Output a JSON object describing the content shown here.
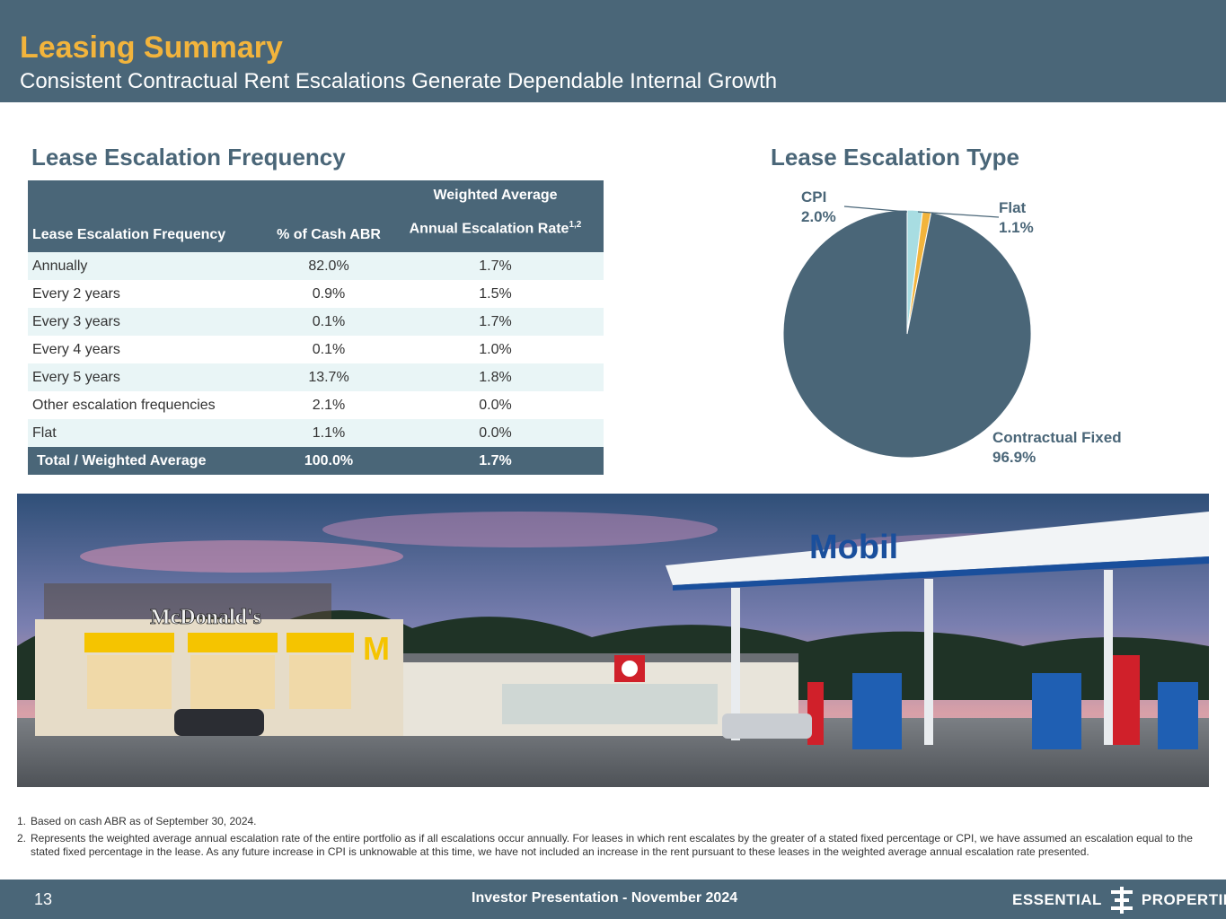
{
  "header": {
    "title": "Leasing Summary",
    "subtitle": "Consistent Contractual Rent Escalations Generate Dependable Internal Growth"
  },
  "frequency_section": {
    "title": "Lease Escalation Frequency",
    "columns": {
      "col1": "Lease Escalation Frequency",
      "col2": "% of Cash ABR",
      "col3_line1": "Weighted Average",
      "col3_line2": "Annual Escalation Rate",
      "col3_sup": "1,2"
    },
    "rows": [
      {
        "label": "Annually",
        "pct": "82.0%",
        "rate": "1.7%"
      },
      {
        "label": "Every 2 years",
        "pct": "0.9%",
        "rate": "1.5%"
      },
      {
        "label": "Every 3 years",
        "pct": "0.1%",
        "rate": "1.7%"
      },
      {
        "label": "Every 4 years",
        "pct": "0.1%",
        "rate": "1.0%"
      },
      {
        "label": "Every 5 years",
        "pct": "13.7%",
        "rate": "1.8%"
      },
      {
        "label": "Other escalation frequencies",
        "pct": "2.1%",
        "rate": "0.0%"
      },
      {
        "label": "Flat",
        "pct": "1.1%",
        "rate": "0.0%"
      }
    ],
    "total": {
      "label": "Total / Weighted Average",
      "pct": "100.0%",
      "rate": "1.7%"
    }
  },
  "type_section": {
    "title": "Lease Escalation Type",
    "labels": {
      "cpi_name": "CPI",
      "cpi_value": "2.0%",
      "flat_name": "Flat",
      "flat_value": "1.1%",
      "fixed_name": "Contractual Fixed",
      "fixed_value": "96.9%"
    }
  },
  "chart_data": {
    "type": "pie",
    "categories": [
      "CPI",
      "Flat",
      "Contractual Fixed"
    ],
    "values": [
      2.0,
      1.1,
      96.9
    ],
    "colors": [
      "#a8dde2",
      "#f2b43c",
      "#4a6678"
    ],
    "title": "Lease Escalation Type"
  },
  "photo": {
    "signs": {
      "mcdonalds": "McDonald's",
      "mobil": "Mobil"
    }
  },
  "footnotes": [
    {
      "num": "1.",
      "text": "Based on cash ABR as of September 30, 2024."
    },
    {
      "num": "2.",
      "text": "Represents the weighted average annual escalation rate of the entire portfolio as if all escalations occur annually. For leases in which rent escalates by the greater of a stated fixed percentage or CPI, we have assumed an escalation equal to the stated fixed percentage in the lease. As any future increase in CPI is unknowable at this time, we have not included an increase in the rent pursuant to these leases in the weighted average annual escalation rate presented."
    }
  ],
  "footer": {
    "page_number": "13",
    "text": "Investor Presentation - November 2024",
    "logo_left": "ESSENTIAL",
    "logo_right": "PROPERTIES"
  }
}
